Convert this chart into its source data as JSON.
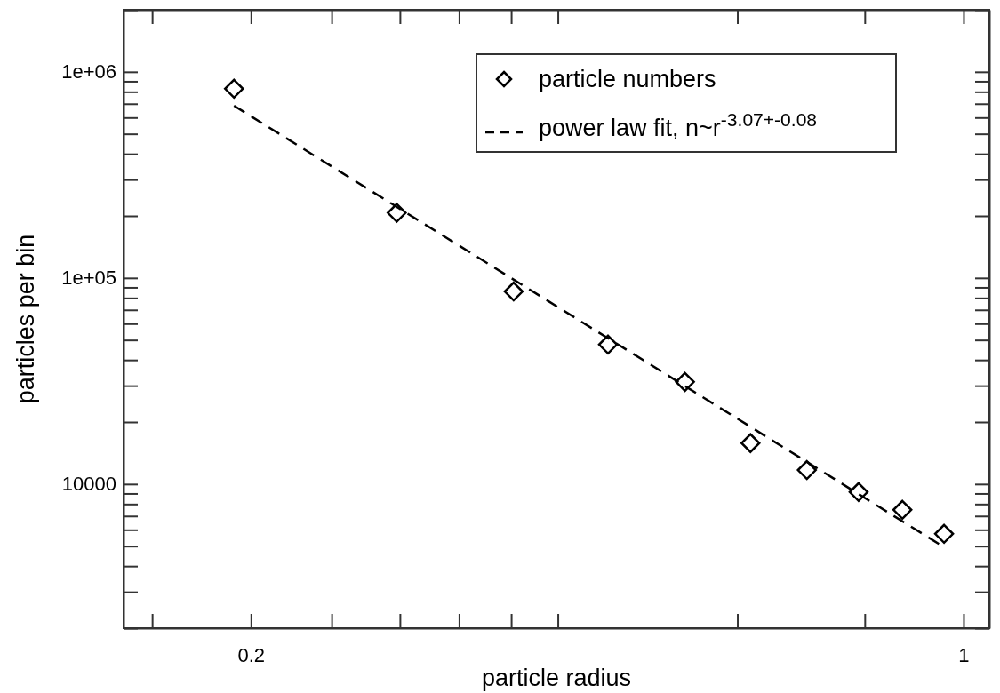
{
  "chart_data": {
    "type": "scatter",
    "xlabel": "particle radius",
    "ylabel": "particles per bin",
    "log": "xy",
    "legend": "top right",
    "grid": false,
    "xlim": [
      0.15,
      1.06
    ],
    "xticks": [
      {
        "value": 0.16,
        "label": null
      },
      {
        "value": 0.2,
        "label": "0.2"
      },
      {
        "value": 0.24,
        "label": null
      },
      {
        "value": 0.28,
        "label": null
      },
      {
        "value": 0.32,
        "label": null
      },
      {
        "value": 0.36,
        "label": null
      },
      {
        "value": 0.4,
        "label": null
      },
      {
        "value": 0.6,
        "label": null
      },
      {
        "value": 0.8,
        "label": null
      },
      {
        "value": 1,
        "label": "1"
      }
    ],
    "ylim": [
      2000,
      2000000
    ],
    "yticks": [
      {
        "value": 2000,
        "label": null
      },
      {
        "value": 3000,
        "label": null
      },
      {
        "value": 4000,
        "label": null
      },
      {
        "value": 5000,
        "label": null
      },
      {
        "value": 6000,
        "label": null
      },
      {
        "value": 7000,
        "label": null
      },
      {
        "value": 8000,
        "label": null
      },
      {
        "value": 9000,
        "label": null
      },
      {
        "value": 10000,
        "label": "10000"
      },
      {
        "value": 20000,
        "label": null
      },
      {
        "value": 30000,
        "label": null
      },
      {
        "value": 40000,
        "label": null
      },
      {
        "value": 50000,
        "label": null
      },
      {
        "value": 60000,
        "label": null
      },
      {
        "value": 70000,
        "label": null
      },
      {
        "value": 80000,
        "label": null
      },
      {
        "value": 90000,
        "label": null
      },
      {
        "value": 100000,
        "label": "1e+05"
      },
      {
        "value": 200000,
        "label": null
      },
      {
        "value": 300000,
        "label": null
      },
      {
        "value": 400000,
        "label": null
      },
      {
        "value": 500000,
        "label": null
      },
      {
        "value": 600000,
        "label": null
      },
      {
        "value": 700000,
        "label": null
      },
      {
        "value": 800000,
        "label": null
      },
      {
        "value": 900000,
        "label": null
      },
      {
        "value": 1000000,
        "label": "1e+06"
      },
      {
        "value": 2000000,
        "label": null
      }
    ],
    "series": [
      {
        "name": "particle numbers",
        "marker": "diamond",
        "color": "#000000",
        "x": [
          0.1925,
          0.278,
          0.362,
          0.448,
          0.533,
          0.618,
          0.702,
          0.789,
          0.871,
          0.957
        ],
        "values": [
          828000,
          207000,
          86000,
          47500,
          31300,
          15800,
          11700,
          9150,
          7500,
          5740
        ]
      },
      {
        "name": "power law fit, n~r$^{-3.07+-0.08}$",
        "type": "line",
        "marker": "none",
        "line_style": "dashed",
        "color": "#000000",
        "x": [
          0.1925,
          0.957
        ],
        "values": [
          685000,
          4940
        ]
      }
    ]
  }
}
